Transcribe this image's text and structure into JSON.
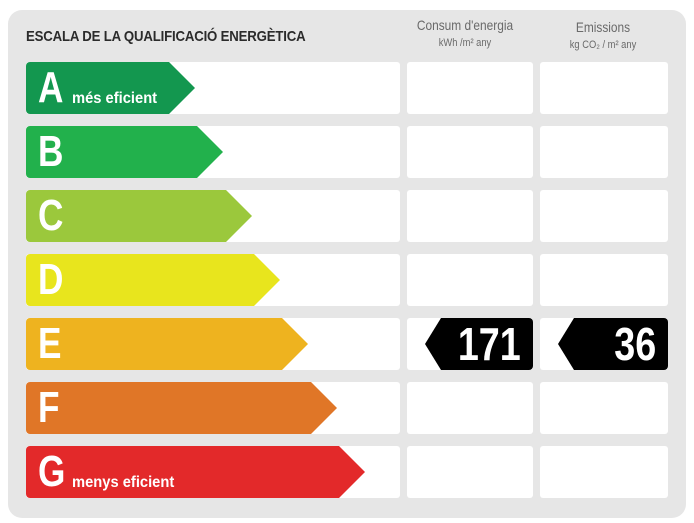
{
  "title": "ESCALA DE LA QUALIFICACIÓ ENERGÈTICA",
  "columns": {
    "consumption": {
      "label": "Consum d'energia",
      "unit": "kWh /m² any"
    },
    "emissions": {
      "label": "Emissions",
      "unit": "kg CO₂ / m² any"
    }
  },
  "classes": [
    {
      "letter": "A",
      "caption": "més eficient",
      "color": "#13974f"
    },
    {
      "letter": "B",
      "caption": "",
      "color": "#22b14c"
    },
    {
      "letter": "C",
      "caption": "",
      "color": "#9bc83c"
    },
    {
      "letter": "D",
      "caption": "",
      "color": "#e8e51d"
    },
    {
      "letter": "E",
      "caption": "",
      "color": "#eeb31f"
    },
    {
      "letter": "F",
      "caption": "",
      "color": "#e07627"
    },
    {
      "letter": "G",
      "caption": "menys eficient",
      "color": "#e3292a"
    }
  ],
  "rating": {
    "class": "E",
    "consumption_value": "171",
    "emissions_value": "36"
  }
}
